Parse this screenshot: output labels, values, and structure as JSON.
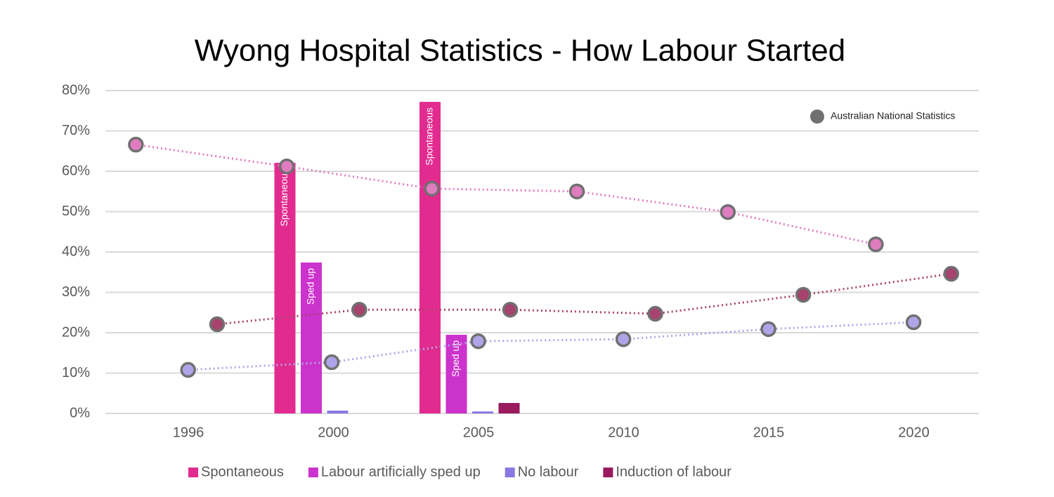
{
  "chart_data": {
    "type": "bar",
    "title": "Wyong Hospital Statistics  - How Labour Started",
    "categories": [
      "1996",
      "2000",
      "2005",
      "2010",
      "2015",
      "2020"
    ],
    "series": [
      {
        "name": "Spontaneous",
        "color": "#e22b8f",
        "bar_label": "Spontaneous",
        "values": [
          null,
          62.1,
          77.2,
          null,
          null,
          null
        ]
      },
      {
        "name": "Labour artificially sped up",
        "color": "#cc33cc",
        "bar_label": "Sped up",
        "values": [
          null,
          37.4,
          19.5,
          null,
          null,
          null
        ]
      },
      {
        "name": "No labour",
        "color": "#8a78e2",
        "values": [
          null,
          0.7,
          0.5,
          null,
          null,
          null
        ]
      },
      {
        "name": "Induction of labour",
        "color": "#9a1a5e",
        "values": [
          null,
          null,
          2.6,
          null,
          null,
          null
        ]
      }
    ],
    "ylim": [
      0,
      80
    ],
    "yticks": [
      {
        "value": 0,
        "label": "0%"
      },
      {
        "value": 10,
        "label": "10%"
      },
      {
        "value": 20,
        "label": "20%"
      },
      {
        "value": 30,
        "label": "30%"
      },
      {
        "value": 40,
        "label": "40%"
      },
      {
        "value": 50,
        "label": "50%"
      },
      {
        "value": 60,
        "label": "60%"
      },
      {
        "value": 70,
        "label": "70%"
      },
      {
        "value": 80,
        "label": "80%"
      }
    ],
    "grid": true,
    "legend": "bottom",
    "overlay": {
      "type": "line",
      "name": "Australian National Statistics",
      "marker_color": "#707070",
      "legend": "top-right",
      "xlim": [
        1992.15,
        2022.25
      ],
      "series": [
        {
          "color": "#e07cc0",
          "x": [
            1993.2,
            1998.4,
            2003.4,
            2008.4,
            2013.6,
            2018.7
          ],
          "values": [
            66.6,
            61.2,
            55.7,
            55.0,
            49.9,
            41.9
          ]
        },
        {
          "color": "#a8426f",
          "x": [
            1996.0,
            2000.9,
            2006.1,
            2011.1,
            2016.2,
            2021.3
          ],
          "values": [
            22.1,
            25.7,
            25.7,
            24.7,
            29.4,
            34.6
          ]
        },
        {
          "color": "#b0a4e8",
          "x": [
            1995.0,
            1999.95,
            2005.0,
            2010.0,
            2015.0,
            2020.0
          ],
          "values": [
            10.8,
            12.7,
            17.9,
            18.4,
            20.9,
            22.6
          ]
        }
      ]
    }
  }
}
